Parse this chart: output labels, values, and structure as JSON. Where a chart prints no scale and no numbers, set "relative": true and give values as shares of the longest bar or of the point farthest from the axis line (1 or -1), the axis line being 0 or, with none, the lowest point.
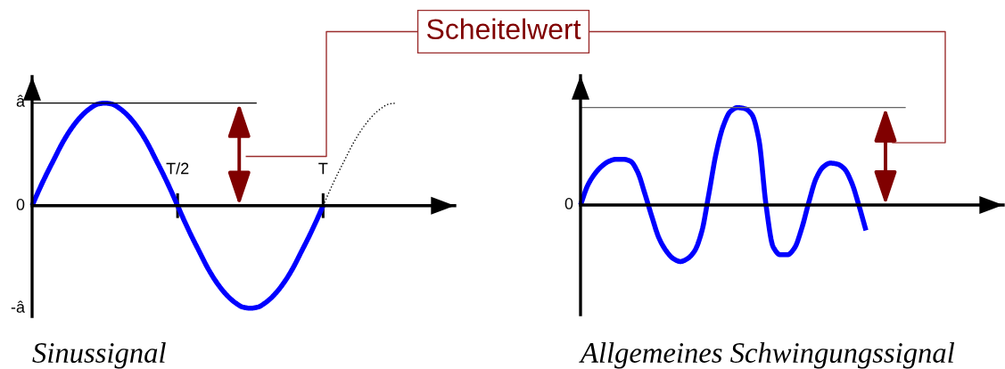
{
  "chart_data": [
    {
      "type": "line",
      "relative": true,
      "xlabel": "Sinussignal",
      "categories": [
        null,
        null,
        null,
        null,
        null,
        null,
        null,
        null,
        null,
        null,
        null,
        null,
        null,
        null,
        null,
        null,
        null,
        null,
        null,
        null,
        "T/2",
        null,
        null,
        null,
        null,
        null,
        null,
        null,
        null,
        null,
        null,
        null,
        null,
        null,
        null,
        null,
        null,
        null,
        null,
        null,
        "T",
        null,
        null,
        null,
        null,
        null,
        null,
        null,
        null,
        null,
        null
      ],
      "series": [
        {
          "color": "#0000ff",
          "line_style": "solid",
          "values": [
            0,
            0.16,
            0.31,
            0.45,
            0.59,
            0.71,
            0.81,
            0.89,
            0.95,
            0.99,
            1,
            0.99,
            0.95,
            0.89,
            0.81,
            0.71,
            0.59,
            0.45,
            0.31,
            0.16,
            0,
            -0.16,
            -0.31,
            -0.45,
            -0.59,
            -0.71,
            -0.81,
            -0.89,
            -0.95,
            -0.99,
            -1,
            -0.99,
            -0.95,
            -0.89,
            -0.81,
            -0.71,
            -0.59,
            -0.45,
            -0.31,
            -0.16,
            0,
            null,
            null,
            null,
            null,
            null,
            null,
            null,
            null,
            null,
            null
          ]
        },
        {
          "color": "#000000",
          "line_style": "dotted",
          "values": [
            null,
            null,
            null,
            null,
            null,
            null,
            null,
            null,
            null,
            null,
            null,
            null,
            null,
            null,
            null,
            null,
            null,
            null,
            null,
            null,
            null,
            null,
            null,
            null,
            null,
            null,
            null,
            null,
            null,
            null,
            null,
            null,
            null,
            null,
            null,
            null,
            null,
            null,
            null,
            null,
            0,
            0.16,
            0.31,
            0.45,
            0.59,
            0.71,
            0.81,
            0.89,
            0.95,
            0.99,
            1
          ]
        }
      ],
      "ref_lines": [
        {
          "axis": "y",
          "value": 1,
          "color": "#000000"
        }
      ],
      "annotations": [
        "Scheitelwert",
        "â",
        "0",
        "-â"
      ]
    },
    {
      "type": "line",
      "relative": true,
      "xlabel": "Allgemeines Schwingungssignal",
      "categories": [
        null,
        null,
        null,
        null,
        null,
        null,
        null,
        null,
        null,
        null,
        null,
        null,
        null,
        null,
        null,
        null,
        null,
        null,
        null,
        null,
        null,
        null,
        null,
        null,
        null,
        null,
        null,
        null,
        null,
        null,
        null,
        null,
        null,
        null,
        null,
        null,
        null,
        null,
        null,
        null,
        null
      ],
      "values": [
        0,
        0.2,
        0.32,
        0.4,
        0.45,
        0.47,
        0.47,
        0.45,
        0.34,
        0.12,
        -0.12,
        -0.34,
        -0.47,
        -0.55,
        -0.58,
        -0.55,
        -0.47,
        -0.27,
        0.12,
        0.53,
        0.81,
        0.96,
        1,
        0.99,
        0.93,
        0.67,
        0,
        -0.43,
        -0.51,
        -0.51,
        -0.44,
        -0.24,
        0.03,
        0.27,
        0.39,
        0.43,
        0.42,
        0.37,
        0.23,
        0,
        -0.26
      ],
      "color": "#0000ff",
      "ref_lines": [
        {
          "axis": "y",
          "value": 1,
          "color": "#666666"
        }
      ],
      "annotations": [
        "0"
      ]
    }
  ]
}
